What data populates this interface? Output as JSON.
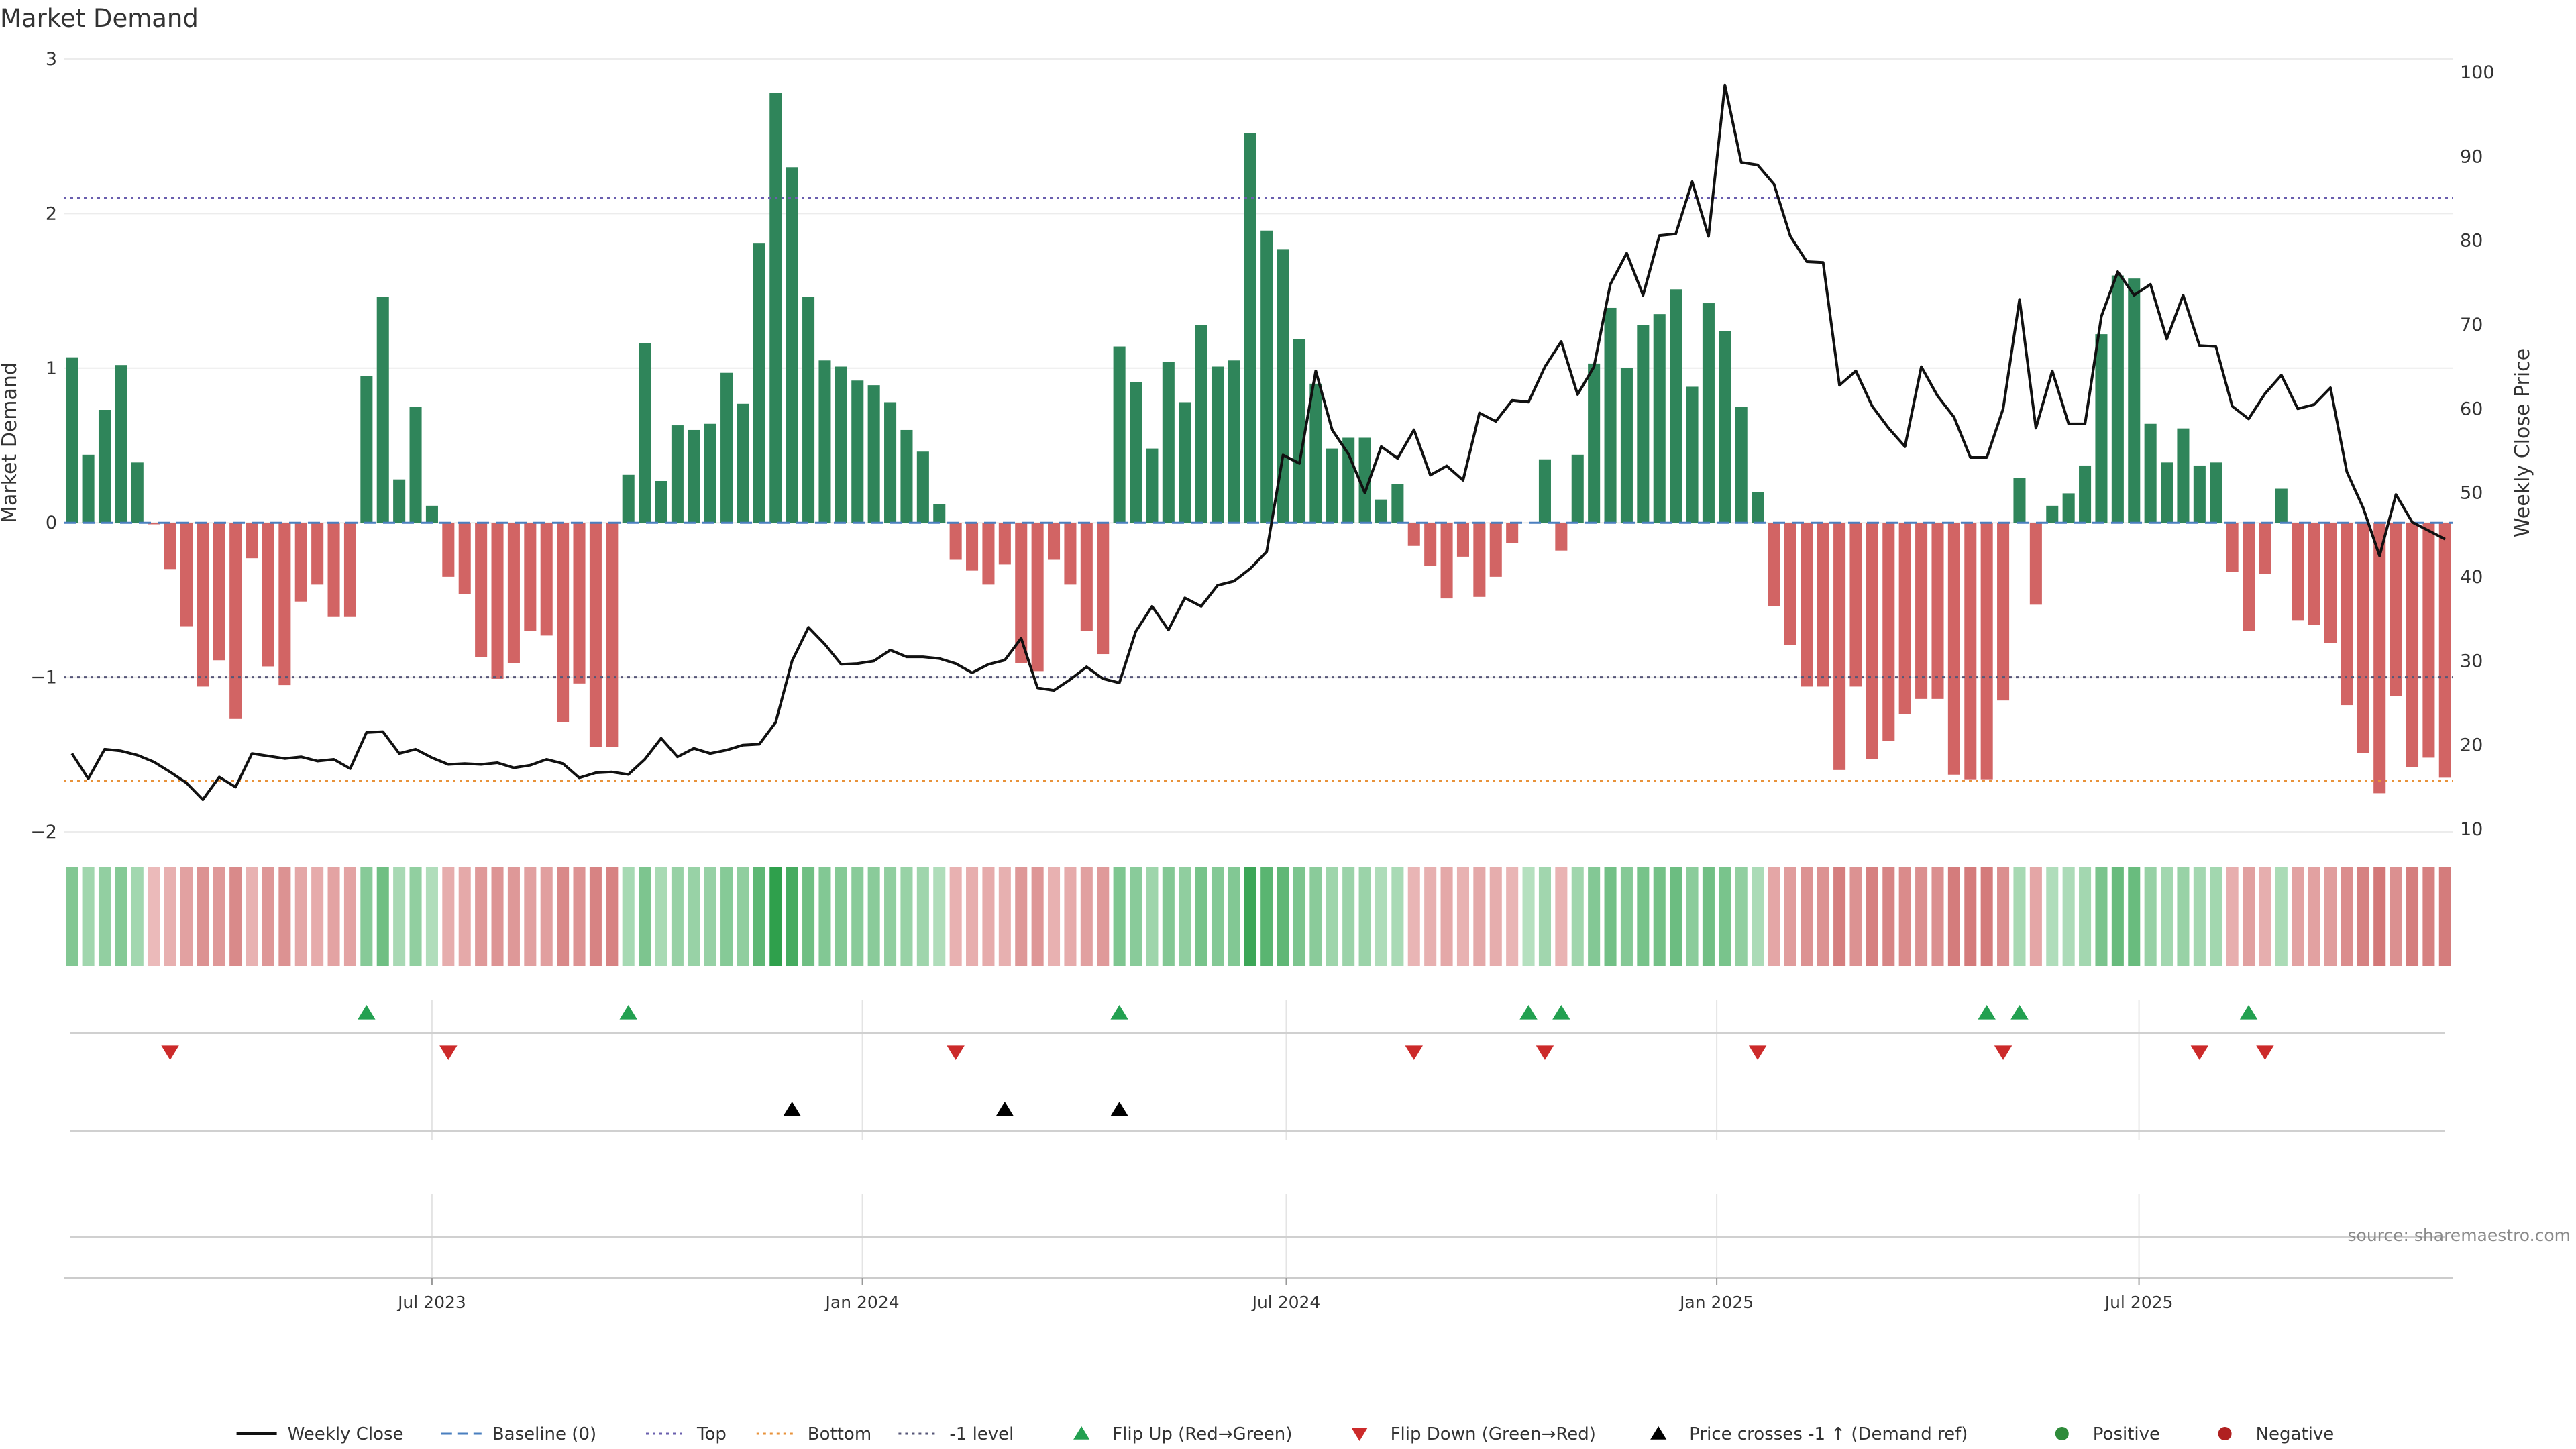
{
  "chart_data": {
    "type": "bar",
    "title": "Market Demand",
    "ylabel": "Market Demand",
    "y2label": "Weekly Close Price",
    "ylim": [
      -2,
      3
    ],
    "y2lim": [
      10,
      100
    ],
    "yticks": [
      3,
      2,
      1,
      0,
      -1,
      -2
    ],
    "ytick_labels": [
      "3",
      "2",
      "1",
      "0",
      "−1",
      "−2"
    ],
    "y2ticks": [
      100,
      90,
      80,
      70,
      60,
      50,
      40,
      30,
      20,
      10
    ],
    "y2tick_labels": [
      "100",
      "90",
      "80",
      "70",
      "60",
      "50",
      "40",
      "30",
      "20",
      "10"
    ],
    "x_ticks": [
      {
        "label": "Jul 2023",
        "week": 22
      },
      {
        "label": "Jan 2024",
        "week": 48.3
      },
      {
        "label": "Jul 2024",
        "week": 74.2
      },
      {
        "label": "Jan 2025",
        "week": 100.5
      },
      {
        "label": "Jul 2025",
        "week": 126.3
      }
    ],
    "reference_lines": {
      "top": 2.1,
      "bottom": -1.67,
      "minus_one": -1.0,
      "baseline": 0
    },
    "demand": [
      1.07,
      0.44,
      0.73,
      1.02,
      0.39,
      -0.01,
      -0.3,
      -0.67,
      -1.06,
      -0.89,
      -1.27,
      -0.23,
      -0.93,
      -1.05,
      -0.51,
      -0.4,
      -0.61,
      -0.61,
      0.95,
      1.46,
      0.28,
      0.75,
      0.11,
      -0.35,
      -0.46,
      -0.87,
      -1.01,
      -0.91,
      -0.7,
      -0.73,
      -1.29,
      -1.04,
      -1.45,
      -1.45,
      0.31,
      1.16,
      0.27,
      0.63,
      0.6,
      0.64,
      0.97,
      0.77,
      1.81,
      2.78,
      2.3,
      1.46,
      1.05,
      1.01,
      0.92,
      0.89,
      0.78,
      0.6,
      0.46,
      0.12,
      -0.24,
      -0.31,
      -0.4,
      -0.27,
      -0.91,
      -0.96,
      -0.24,
      -0.4,
      -0.7,
      -0.85,
      1.14,
      0.91,
      0.48,
      1.04,
      0.78,
      1.28,
      1.01,
      1.05,
      2.52,
      1.89,
      1.77,
      1.19,
      0.9,
      0.48,
      0.55,
      0.55,
      0.15,
      0.25,
      -0.15,
      -0.28,
      -0.49,
      -0.22,
      -0.48,
      -0.35,
      -0.13,
      0,
      0.41,
      -0.18,
      0.44,
      1.03,
      1.39,
      1.0,
      1.28,
      1.35,
      1.51,
      0.88,
      1.42,
      1.24,
      0.75,
      0.2,
      -0.54,
      -0.79,
      -1.06,
      -1.06,
      -1.6,
      -1.06,
      -1.53,
      -1.41,
      -1.24,
      -1.14,
      -1.14,
      -1.63,
      -1.66,
      -1.66,
      -1.15,
      0.29,
      -0.53,
      0.11,
      0.19,
      0.37,
      1.22,
      1.6,
      1.58,
      0.64,
      0.39,
      0.61,
      0.37,
      0.39,
      -0.32,
      -0.7,
      -0.33,
      0.22,
      -0.63,
      -0.66,
      -0.78,
      -1.18,
      -1.49,
      -1.75,
      -1.12,
      -1.58,
      -1.52,
      -1.65
    ],
    "weekly_close": [
      19,
      16,
      19.5,
      19.3,
      18.8,
      18,
      16.8,
      15.5,
      13.5,
      16.2,
      15,
      19,
      18.7,
      18.4,
      18.6,
      18.1,
      18.3,
      17.2,
      21.5,
      21.6,
      19,
      19.5,
      18.5,
      17.7,
      17.8,
      17.7,
      17.9,
      17.3,
      17.6,
      18.3,
      17.8,
      16.1,
      16.7,
      16.8,
      16.5,
      18.3,
      20.8,
      18.6,
      19.6,
      19,
      19.4,
      20,
      20.1,
      22.7,
      30,
      34,
      32,
      29.6,
      29.7,
      30,
      31.3,
      30.5,
      30.5,
      30.3,
      29.7,
      28.6,
      29.6,
      30.1,
      32.7,
      26.8,
      26.5,
      27.8,
      29.3,
      27.9,
      27.4,
      33.5,
      36.5,
      33.7,
      37.5,
      36.5,
      39,
      39.5,
      41,
      43,
      54.5,
      53.5,
      64.5,
      57.5,
      54.6,
      50,
      55.5,
      54.1,
      57.5,
      52.1,
      53.2,
      51.5,
      59.5,
      58.5,
      61,
      60.8,
      65,
      68,
      61.7,
      65,
      74.8,
      78.5,
      73.5,
      80.6,
      80.8,
      87,
      80.5,
      98.5,
      89.3,
      89,
      86.7,
      80.5,
      77.5,
      77.4,
      62.8,
      64.5,
      60.3,
      57.7,
      55.5,
      65,
      61.5,
      59,
      54.2,
      54.2,
      60,
      73,
      57.7,
      64.5,
      58.2,
      58.2,
      71,
      76.3,
      73.5,
      74.8,
      68.3,
      73.5,
      67.5,
      67.4,
      60.3,
      58.8,
      61.8,
      64,
      60,
      60.5,
      62.5,
      52.5,
      48.2,
      42.5,
      49.8,
      46.5,
      45.5,
      44.5
    ],
    "heat_strip": "weekly demand intensity (green = positive, red = negative)",
    "flip_up_weeks": [
      18,
      34,
      64,
      89,
      91,
      117,
      119,
      133
    ],
    "flip_down_weeks": [
      6,
      23,
      54,
      82,
      90,
      103,
      118,
      130,
      134
    ],
    "price_cross_weeks": [
      44,
      57,
      64
    ],
    "legend": [
      {
        "label": "Weekly Close",
        "kind": "line",
        "color": "#111111"
      },
      {
        "label": "Baseline (0)",
        "kind": "dash",
        "color": "#4a7fbf"
      },
      {
        "label": "Top",
        "kind": "dot",
        "color": "#6a5fae"
      },
      {
        "label": "Bottom",
        "kind": "dot",
        "color": "#e8923a"
      },
      {
        "label": "-1 level",
        "kind": "dot",
        "color": "#555577"
      },
      {
        "label": "Flip Up (Red→Green)",
        "kind": "tri-up",
        "color": "#22a050"
      },
      {
        "label": "Flip Down (Green→Red)",
        "kind": "tri-down",
        "color": "#cc2a2a"
      },
      {
        "label": "Price crosses -1 ↑ (Demand ref)",
        "kind": "tri-up",
        "color": "#000000"
      },
      {
        "label": "Positive",
        "kind": "dot-marker",
        "color": "#2e8b3a"
      },
      {
        "label": "Negative",
        "kind": "dot-marker",
        "color": "#b02020"
      }
    ],
    "legend_position": "bottom-center",
    "source": "source: sharemaestro.com"
  },
  "colors": {
    "positive_bar": "#2f855a",
    "negative_bar": "#d26464",
    "close_line": "#111111",
    "grid": "#ececec"
  }
}
